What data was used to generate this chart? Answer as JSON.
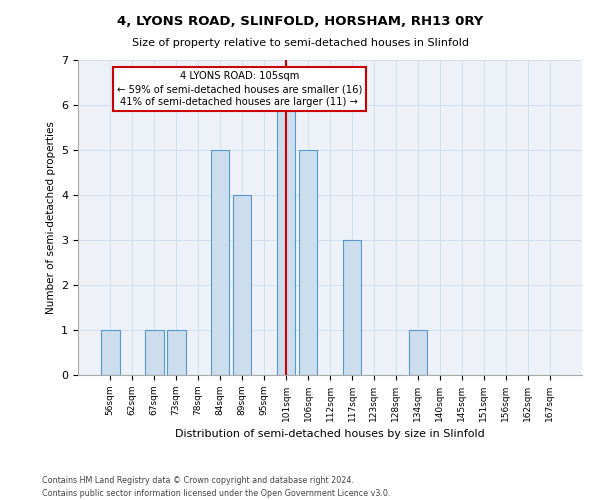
{
  "title": "4, LYONS ROAD, SLINFOLD, HORSHAM, RH13 0RY",
  "subtitle": "Size of property relative to semi-detached houses in Slinfold",
  "xlabel": "Distribution of semi-detached houses by size in Slinfold",
  "ylabel": "Number of semi-detached properties",
  "categories": [
    "56sqm",
    "62sqm",
    "67sqm",
    "73sqm",
    "78sqm",
    "84sqm",
    "89sqm",
    "95sqm",
    "101sqm",
    "106sqm",
    "112sqm",
    "117sqm",
    "123sqm",
    "128sqm",
    "134sqm",
    "140sqm",
    "145sqm",
    "151sqm",
    "156sqm",
    "162sqm",
    "167sqm"
  ],
  "values": [
    1,
    0,
    1,
    1,
    0,
    5,
    4,
    0,
    6,
    5,
    0,
    3,
    0,
    0,
    1,
    0,
    0,
    0,
    0,
    0,
    0
  ],
  "bar_color": "#ccdded",
  "bar_edgecolor": "#5599cc",
  "highlight_index": 8,
  "highlight_line_color": "#cc0000",
  "annotation_text": "4 LYONS ROAD: 105sqm\n← 59% of semi-detached houses are smaller (16)\n41% of semi-detached houses are larger (11) →",
  "annotation_box_edgecolor": "#cc0000",
  "ylim": [
    0,
    7
  ],
  "yticks": [
    0,
    1,
    2,
    3,
    4,
    5,
    6,
    7
  ],
  "grid_color": "#ccddee",
  "bg_color": "#eef2f8",
  "footer_line1": "Contains HM Land Registry data © Crown copyright and database right 2024.",
  "footer_line2": "Contains public sector information licensed under the Open Government Licence v3.0."
}
